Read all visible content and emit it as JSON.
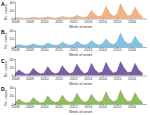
{
  "chart_data": [
    {
      "type": "area",
      "title": "A",
      "x_label": "Week of onset",
      "y_label": "No. cases",
      "color": "#f4b183",
      "x": [
        2008,
        2008.25,
        2008.5,
        2008.75,
        2009,
        2009.25,
        2009.5,
        2009.75,
        2010,
        2010.25,
        2010.5,
        2010.75,
        2011,
        2011.25,
        2011.5,
        2011.75,
        2012,
        2012.25,
        2012.5,
        2012.75,
        2013,
        2013.25,
        2013.5,
        2013.75,
        2014,
        2014.25,
        2014.5,
        2014.75,
        2015,
        2015.25,
        2015.5,
        2015.75,
        2016,
        2016.25,
        2016.5,
        2016.75
      ],
      "values": [
        1,
        2,
        1,
        1,
        1,
        3,
        2,
        1,
        2,
        4,
        2,
        1,
        2,
        5,
        3,
        2,
        3,
        8,
        4,
        2,
        6,
        20,
        10,
        4,
        8,
        30,
        14,
        5,
        10,
        36,
        18,
        6,
        9,
        28,
        12,
        4
      ],
      "xlim": [
        2008,
        2017
      ],
      "xticks": [
        2008,
        2009,
        2010,
        2011,
        2012,
        2013,
        2014,
        2015,
        2016
      ],
      "ylim": [
        0,
        40
      ],
      "yticks": [
        0,
        20,
        40
      ]
    },
    {
      "type": "area",
      "title": "B",
      "x_label": "Week of onset",
      "y_label": "No. cases",
      "color": "#7fc4e8",
      "x": [
        2008,
        2008.25,
        2008.5,
        2008.75,
        2009,
        2009.25,
        2009.5,
        2009.75,
        2010,
        2010.25,
        2010.5,
        2010.75,
        2011,
        2011.25,
        2011.5,
        2011.75,
        2012,
        2012.25,
        2012.5,
        2012.75,
        2013,
        2013.25,
        2013.5,
        2013.75,
        2014,
        2014.25,
        2014.5,
        2014.75,
        2015,
        2015.25,
        2015.5,
        2015.75,
        2016,
        2016.25,
        2016.5,
        2016.75
      ],
      "values": [
        3,
        6,
        4,
        3,
        4,
        8,
        5,
        3,
        5,
        10,
        6,
        4,
        5,
        12,
        7,
        4,
        6,
        14,
        8,
        5,
        7,
        16,
        9,
        5,
        8,
        20,
        10,
        6,
        12,
        34,
        16,
        8,
        10,
        26,
        12,
        6
      ],
      "xlim": [
        2008,
        2017
      ],
      "xticks": [
        2008,
        2009,
        2010,
        2011,
        2012,
        2013,
        2014,
        2015,
        2016
      ],
      "ylim": [
        0,
        40
      ],
      "yticks": [
        0,
        20,
        40
      ]
    },
    {
      "type": "area",
      "title": "C",
      "x_label": "Week of onset",
      "y_label": "No. cases",
      "color": "#7b5ea7",
      "x": [
        2008,
        2008.25,
        2008.5,
        2008.75,
        2009,
        2009.25,
        2009.5,
        2009.75,
        2010,
        2010.25,
        2010.5,
        2010.75,
        2011,
        2011.25,
        2011.5,
        2011.75,
        2012,
        2012.25,
        2012.5,
        2012.75,
        2013,
        2013.25,
        2013.5,
        2013.75,
        2014,
        2014.25,
        2014.5,
        2014.75,
        2015,
        2015.25,
        2015.5,
        2015.75,
        2016,
        2016.25,
        2016.5,
        2016.75
      ],
      "values": [
        4,
        14,
        8,
        3,
        5,
        18,
        9,
        4,
        6,
        22,
        10,
        4,
        7,
        24,
        12,
        5,
        8,
        28,
        14,
        5,
        8,
        30,
        14,
        6,
        9,
        32,
        16,
        6,
        10,
        34,
        18,
        7,
        9,
        30,
        14,
        6
      ],
      "xlim": [
        2008,
        2017
      ],
      "xticks": [
        2008,
        2009,
        2010,
        2011,
        2012,
        2013,
        2014,
        2015,
        2016
      ],
      "ylim": [
        0,
        40
      ],
      "yticks": [
        0,
        20,
        40
      ]
    },
    {
      "type": "area",
      "title": "D",
      "x_label": "Week of onset",
      "y_label": "No. cases",
      "color": "#8fbf5a",
      "x": [
        2008,
        2008.25,
        2008.5,
        2008.75,
        2009,
        2009.25,
        2009.5,
        2009.75,
        2010,
        2010.25,
        2010.5,
        2010.75,
        2011,
        2011.25,
        2011.5,
        2011.75,
        2012,
        2012.25,
        2012.5,
        2012.75,
        2013,
        2013.25,
        2013.5,
        2013.75,
        2014,
        2014.25,
        2014.5,
        2014.75,
        2015,
        2015.25,
        2015.5,
        2015.75,
        2016,
        2016.25,
        2016.5,
        2016.75
      ],
      "values": [
        3,
        12,
        6,
        3,
        4,
        16,
        8,
        3,
        5,
        20,
        9,
        4,
        6,
        22,
        10,
        4,
        7,
        26,
        12,
        5,
        7,
        24,
        11,
        5,
        8,
        30,
        13,
        6,
        9,
        34,
        15,
        6,
        8,
        28,
        12,
        5
      ],
      "xlim": [
        2008,
        2017
      ],
      "xticks": [
        2008,
        2009,
        2010,
        2011,
        2012,
        2013,
        2014,
        2015,
        2016
      ],
      "ylim": [
        0,
        40
      ],
      "yticks": [
        0,
        20,
        40
      ]
    }
  ]
}
